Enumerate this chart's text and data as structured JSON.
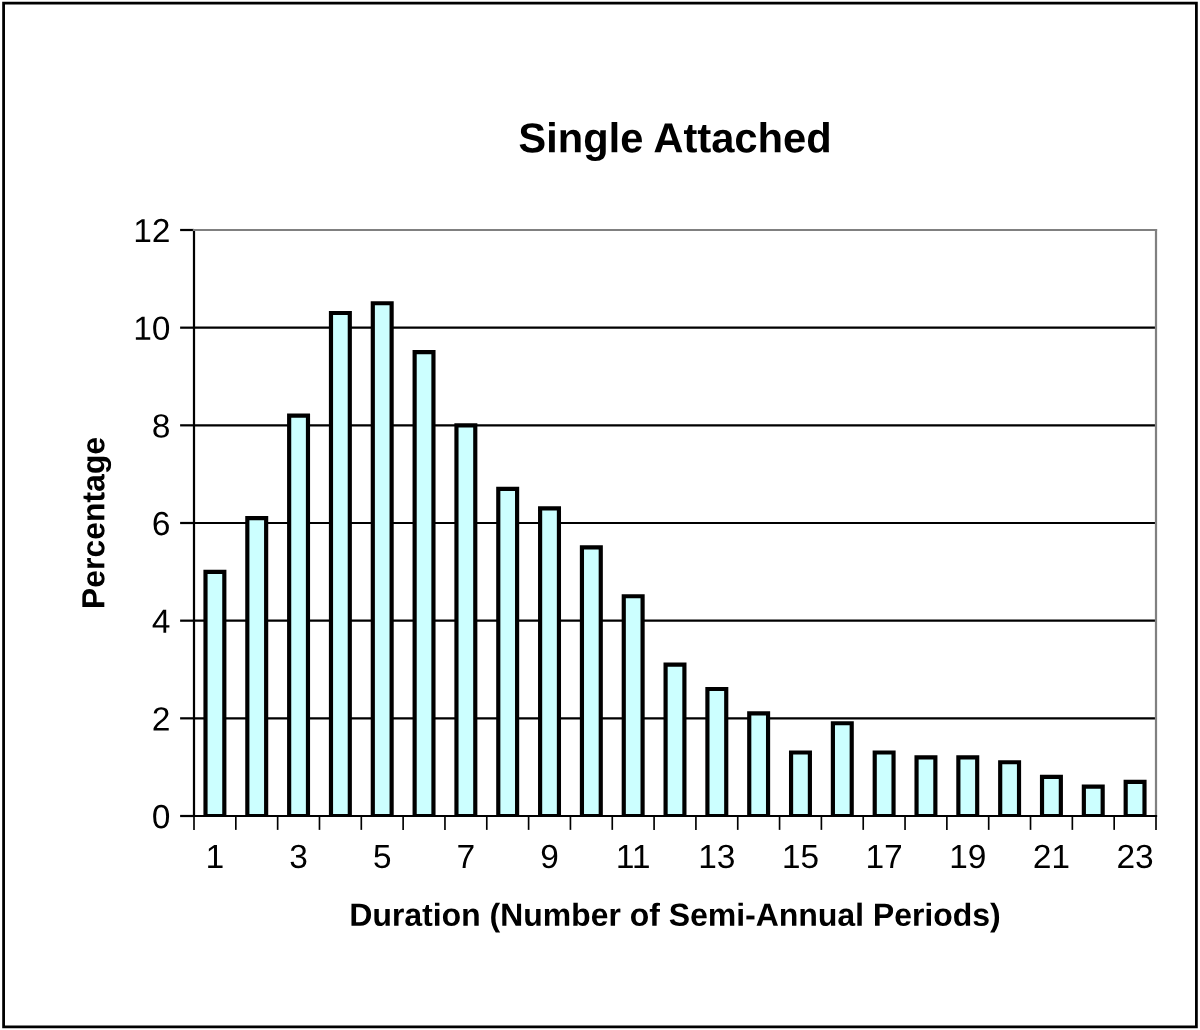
{
  "chart_data": {
    "type": "bar",
    "title": "Single Attached",
    "xlabel": "Duration (Number of Semi-Annual Periods)",
    "ylabel": "Percentage",
    "categories": [
      "1",
      null,
      "3",
      null,
      "5",
      null,
      "7",
      null,
      "9",
      null,
      "11",
      null,
      "13",
      null,
      "15",
      null,
      "17",
      null,
      "19",
      null,
      "21",
      null,
      "23"
    ],
    "values": [
      5,
      6.1,
      8.2,
      10.3,
      10.5,
      9.5,
      8.0,
      6.7,
      6.3,
      5.5,
      4.5,
      3.1,
      2.6,
      2.1,
      1.3,
      1.9,
      1.3,
      1.2,
      1.2,
      1.1,
      0.8,
      0.6,
      0.7
    ],
    "color": "#ccffff",
    "ylim": [
      0,
      12
    ],
    "yticks": [
      0,
      2,
      4,
      6,
      8,
      10,
      12
    ],
    "grid": "y",
    "legend": false
  }
}
